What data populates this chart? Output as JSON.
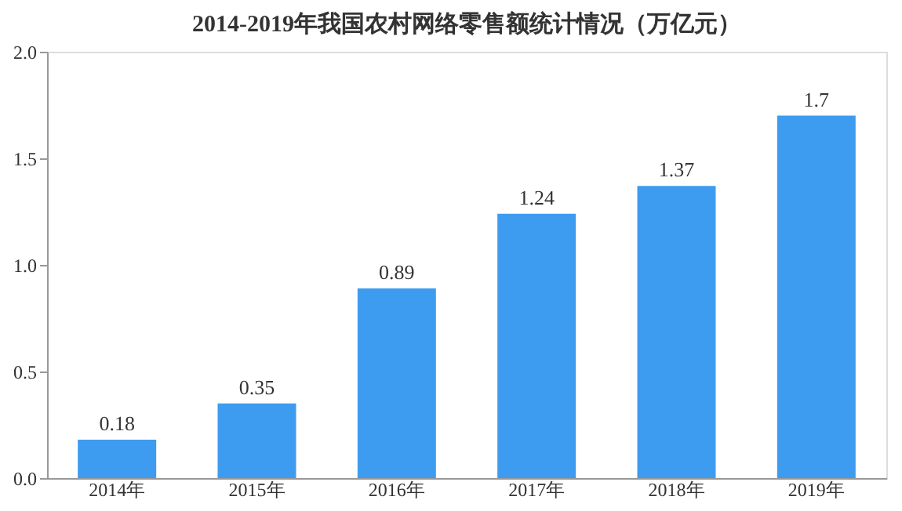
{
  "chart_data": {
    "type": "bar",
    "title": "2014-2019年我国农村网络零售额统计情况（万亿元）",
    "categories": [
      "2014年",
      "2015年",
      "2016年",
      "2017年",
      "2018年",
      "2019年"
    ],
    "values": [
      0.18,
      0.35,
      0.89,
      1.24,
      1.37,
      1.7
    ],
    "value_labels": [
      "0.18",
      "0.35",
      "0.89",
      "1.24",
      "1.37",
      "1.7"
    ],
    "color": "#3d9cf0",
    "ylim": [
      0,
      2.0
    ],
    "yticks": [
      {
        "value": 0,
        "label": "0.0"
      },
      {
        "value": 0.5,
        "label": "0.5"
      },
      {
        "value": 1.0,
        "label": "1.0"
      },
      {
        "value": 1.5,
        "label": "1.5"
      },
      {
        "value": 2.0,
        "label": "2.0"
      }
    ],
    "grid": false
  }
}
